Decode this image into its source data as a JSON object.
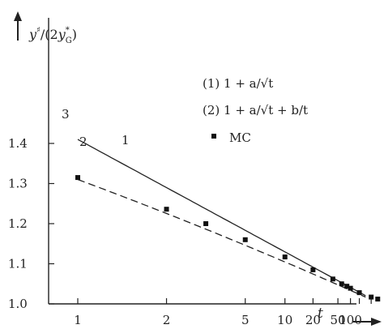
{
  "chart_data": {
    "type": "line",
    "ylabel": "y♯/(2y*G)",
    "xlabel": "t",
    "x_scale": "1/sqrt(t)",
    "ylim": [
      1.0,
      1.45
    ],
    "y_ticks": [
      1.0,
      1.1,
      1.2,
      1.3,
      1.4
    ],
    "y_tick_labels": [
      "1.0",
      "1.1",
      "1.2",
      "1.3",
      "1.4"
    ],
    "x_ticks": [
      1,
      2,
      5,
      10,
      20,
      50,
      100
    ],
    "x_tick_labels": [
      "1",
      "2",
      "5",
      "10",
      "20",
      "50",
      "100"
    ],
    "legend": [
      {
        "key": "1",
        "label": "(1) 1 + a/√t"
      },
      {
        "key": "2",
        "label": "(2) 1 + a/√t + b/t"
      },
      {
        "key": "MC",
        "label": "MC"
      }
    ],
    "curve_labels": [
      "1",
      "2",
      "3"
    ],
    "series": [
      {
        "key": "1",
        "style": "solid",
        "model": "1 + a/√t",
        "a": 0.41
      },
      {
        "key": "2",
        "style": "dashed",
        "model": "1 + a/√t + b/t",
        "a": 0.34,
        "b": -0.03
      }
    ],
    "mc_points": {
      "x": [
        1,
        2,
        3,
        5,
        10,
        20,
        40,
        60,
        80,
        100,
        200,
        1000,
        10000
      ],
      "y": [
        1.315,
        1.236,
        1.2,
        1.16,
        1.117,
        1.085,
        1.062,
        1.05,
        1.044,
        1.039,
        1.028,
        1.017,
        1.012
      ]
    }
  }
}
